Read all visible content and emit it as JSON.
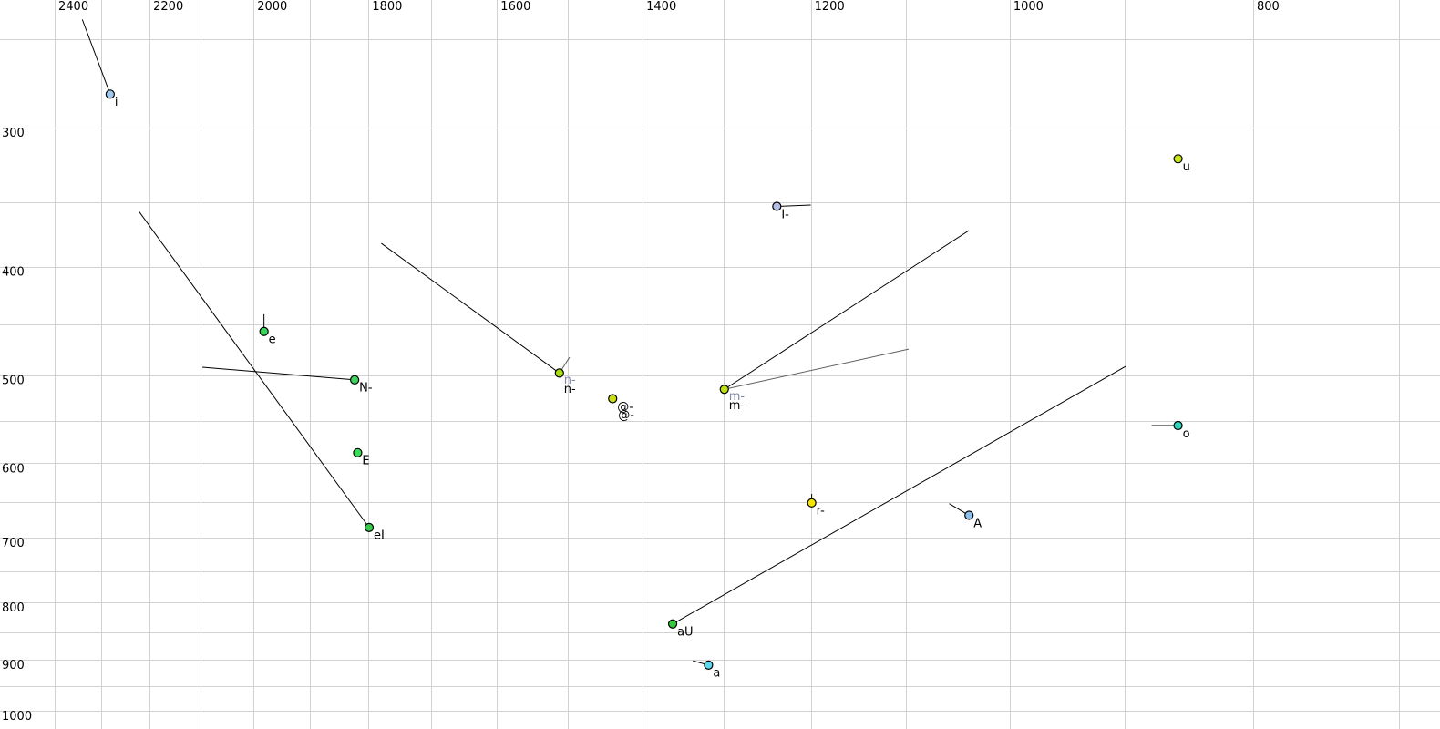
{
  "chart": {
    "background": "#ffffff",
    "grid_color": "#d2d2d2",
    "axis_text_color": "#000000",
    "primary_line_color": "#000000",
    "secondary_line_color": "#606060",
    "point_label_color": "#000000",
    "secondary_label_color": "#8086a8",
    "point_stroke_color": "#000000"
  },
  "chart_data": {
    "type": "scatter",
    "title": "",
    "xlabel": "",
    "ylabel": "",
    "x_axis": {
      "scale": "log",
      "reversed": true,
      "tick_labels": [
        2400,
        2200,
        2000,
        1800,
        1600,
        1400,
        1200,
        1000,
        800
      ],
      "gridlines": [
        2400,
        2300,
        2200,
        2100,
        2000,
        1900,
        1800,
        1700,
        1600,
        1500,
        1400,
        1300,
        1200,
        1100,
        1000,
        900,
        800,
        700
      ]
    },
    "y_axis": {
      "scale": "log",
      "reversed": false,
      "tick_labels": [
        300,
        400,
        500,
        600,
        700,
        800,
        900,
        1000
      ],
      "gridlines": [
        250,
        300,
        350,
        400,
        450,
        500,
        550,
        600,
        650,
        700,
        750,
        800,
        850,
        900,
        950,
        1000
      ]
    },
    "points": [
      {
        "label": "i",
        "f2": 2281,
        "f1": 280,
        "fill": "#a0c8ec"
      },
      {
        "label": "u",
        "f2": 857,
        "f1": 320,
        "fill": "#c6e414"
      },
      {
        "label": "I-",
        "f2": 1238,
        "f1": 353,
        "fill": "#b4bce8"
      },
      {
        "label": "e",
        "f2": 1981,
        "f1": 457,
        "fill": "#3cd45c"
      },
      {
        "label": "N-",
        "f2": 1823,
        "f1": 505,
        "fill": "#3cd45c"
      },
      {
        "label": "n-",
        "f2": 1511,
        "f1": 498,
        "fill": "#aadc14",
        "secondary_label": "n-"
      },
      {
        "label": "@-",
        "f2": 1439,
        "f1": 525,
        "fill": "#cade14",
        "extra_label": "@-"
      },
      {
        "label": "m-",
        "f2": 1299,
        "f1": 515,
        "fill": "#bede14",
        "secondary_label": "m-"
      },
      {
        "label": "o",
        "f2": 857,
        "f1": 555,
        "fill": "#2cd8bc"
      },
      {
        "label": "E",
        "f2": 1818,
        "f1": 587,
        "fill": "#3cdc58"
      },
      {
        "label": "r-",
        "f2": 1199,
        "f1": 651,
        "fill": "#f4e400"
      },
      {
        "label": "A",
        "f2": 1038,
        "f1": 668,
        "fill": "#8cc0ec"
      },
      {
        "label": "eI",
        "f2": 1799,
        "f1": 685,
        "fill": "#34cc48"
      },
      {
        "label": "aU",
        "f2": 1362,
        "f1": 836,
        "fill": "#34c83c"
      },
      {
        "label": "a",
        "f2": 1318,
        "f1": 910,
        "fill": "#5cd8ec"
      }
    ],
    "segments": [
      {
        "from": [
          2340,
          240
        ],
        "to": [
          2281,
          280
        ],
        "style": "primary"
      },
      {
        "from": [
          2221,
          357
        ],
        "to": [
          1799,
          685
        ],
        "style": "primary"
      },
      {
        "from": [
          2096,
          492
        ],
        "to": [
          1823,
          505
        ],
        "style": "primary"
      },
      {
        "from": [
          1981,
          441
        ],
        "to": [
          1981,
          457
        ],
        "style": "primary"
      },
      {
        "from": [
          1779,
          381
        ],
        "to": [
          1511,
          498
        ],
        "style": "primary"
      },
      {
        "from": [
          1497,
          482
        ],
        "to": [
          1511,
          498
        ],
        "style": "secondary"
      },
      {
        "from": [
          1238,
          353
        ],
        "to": [
          1200,
          352
        ],
        "style": "primary"
      },
      {
        "from": [
          1299,
          515
        ],
        "to": [
          1038,
          371
        ],
        "style": "primary"
      },
      {
        "from": [
          1299,
          515
        ],
        "to": [
          1097,
          474
        ],
        "style": "secondary"
      },
      {
        "from": [
          878,
          555
        ],
        "to": [
          857,
          555
        ],
        "style": "primary"
      },
      {
        "from": [
          1199,
          639
        ],
        "to": [
          1199,
          651
        ],
        "style": "primary"
      },
      {
        "from": [
          1057,
          652
        ],
        "to": [
          1038,
          668
        ],
        "style": "primary"
      },
      {
        "from": [
          1362,
          836
        ],
        "to": [
          899,
          491
        ],
        "style": "primary"
      },
      {
        "from": [
          1337,
          902
        ],
        "to": [
          1318,
          910
        ],
        "style": "primary"
      }
    ]
  }
}
